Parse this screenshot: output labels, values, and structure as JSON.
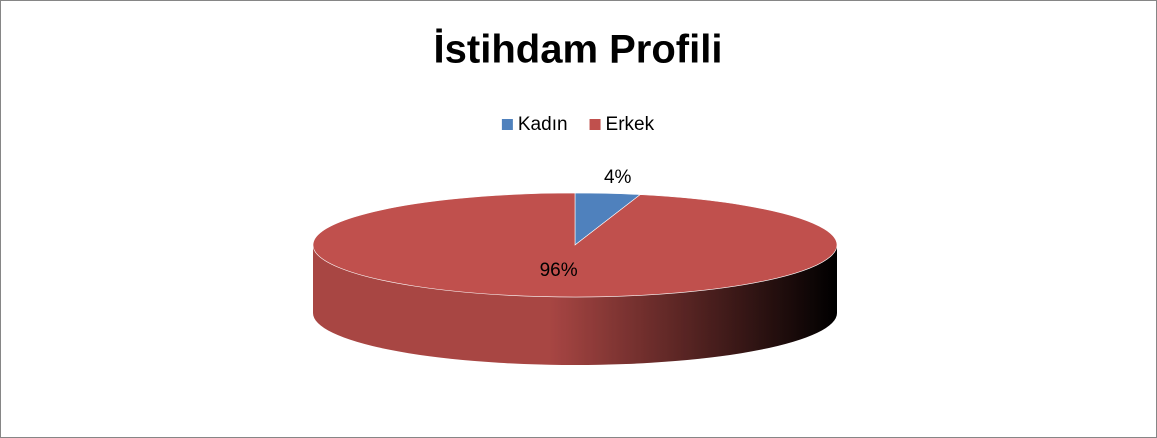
{
  "chart_data": {
    "type": "pie",
    "title": "İstihdam Profili",
    "categories": [
      "Kadın",
      "Erkek"
    ],
    "values": [
      4,
      96
    ],
    "value_labels": [
      "4%",
      "96%"
    ],
    "colors": [
      "#4f81bd",
      "#c0504d"
    ],
    "legend": "top",
    "three_d": true
  }
}
